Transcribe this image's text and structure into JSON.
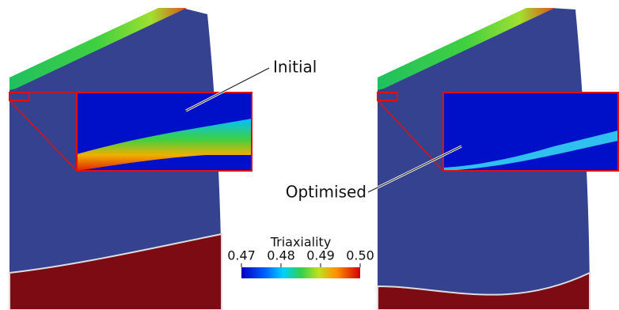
{
  "labels": {
    "initial": "Initial",
    "optimised": "Optimised"
  },
  "colorbar": {
    "title": "Triaxiality",
    "range": [
      0.47,
      {
        "value": 0.5,
        "label": "0.50"
      }
    ],
    "ticks": [
      0.47,
      0.48,
      0.49,
      {
        "value": 0.5,
        "label": "0.50"
      }
    ]
  }
}
